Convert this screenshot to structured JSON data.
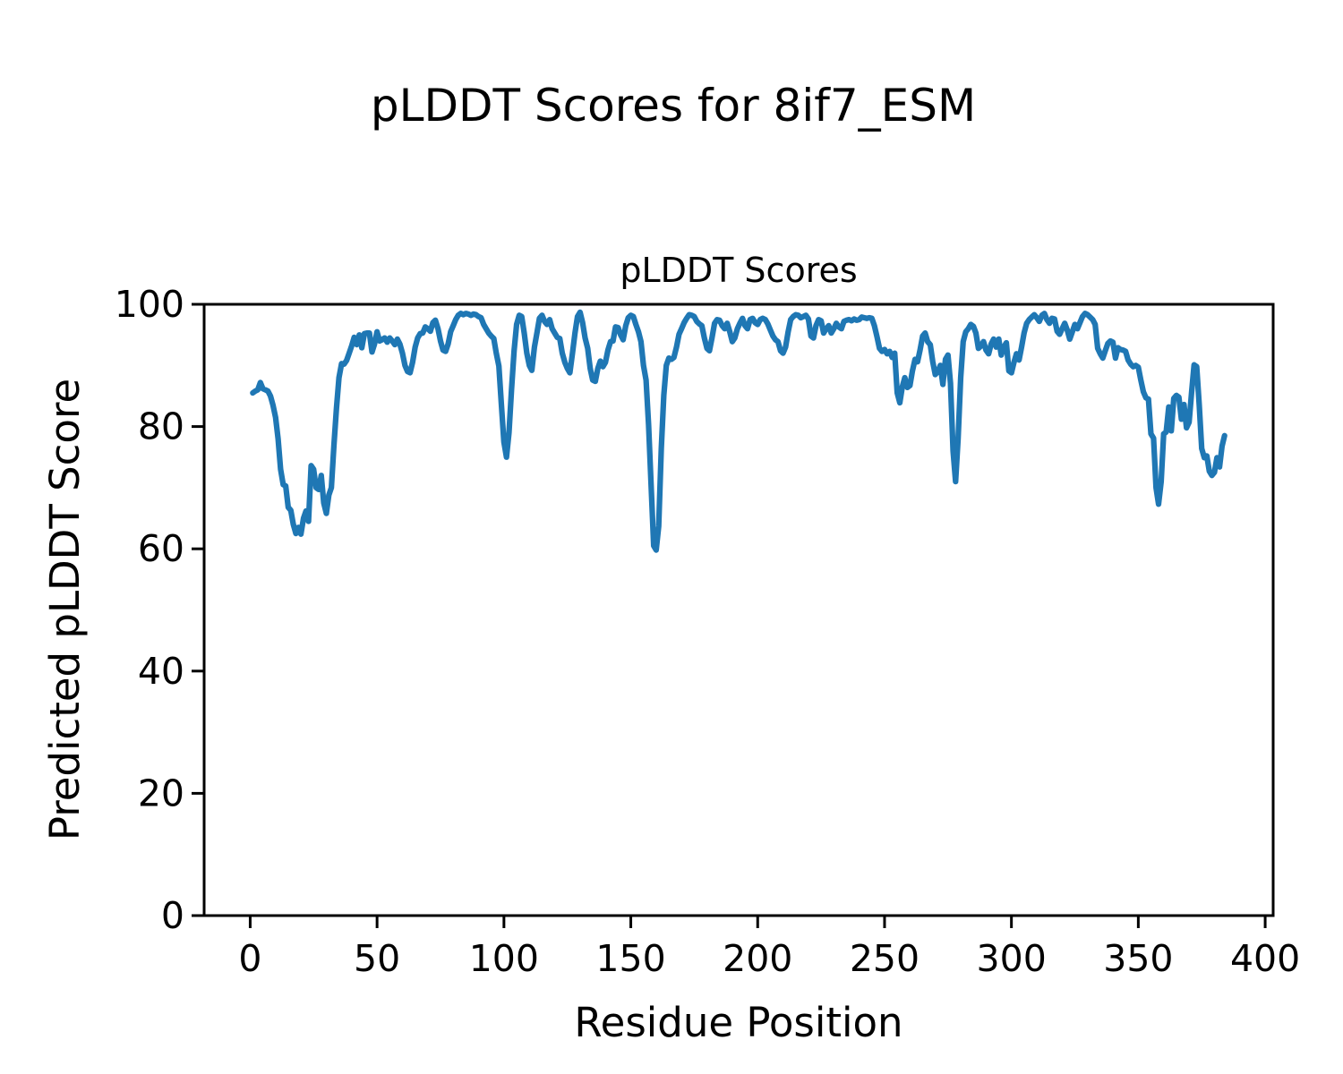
{
  "figure": {
    "suptitle": "pLDDT Scores for 8if7_ESM"
  },
  "chart_data": {
    "type": "line",
    "title": "pLDDT Scores",
    "xlabel": "Residue Position",
    "ylabel": "Predicted pLDDT Score",
    "xlim": [
      -18.15,
      403.15
    ],
    "ylim": [
      0,
      100
    ],
    "xticks": [
      0,
      50,
      100,
      150,
      200,
      250,
      300,
      350,
      400
    ],
    "yticks": [
      0,
      20,
      40,
      60,
      80,
      100
    ],
    "grid": false,
    "legend": null,
    "line_color": "#1f77b4",
    "line_width": 6.25,
    "x": [
      1,
      2,
      3,
      4,
      5,
      6,
      7,
      8,
      9,
      10,
      11,
      12,
      13,
      14,
      15,
      16,
      17,
      18,
      19,
      20,
      21,
      22,
      23,
      24,
      25,
      26,
      27,
      28,
      29,
      30,
      31,
      32,
      33,
      34,
      35,
      36,
      37,
      38,
      39,
      40,
      41,
      42,
      43,
      44,
      45,
      46,
      47,
      48,
      49,
      50,
      51,
      52,
      53,
      54,
      55,
      56,
      57,
      58,
      59,
      60,
      61,
      62,
      63,
      64,
      65,
      66,
      67,
      68,
      69,
      70,
      71,
      72,
      73,
      74,
      75,
      76,
      77,
      78,
      79,
      80,
      81,
      82,
      83,
      84,
      85,
      86,
      87,
      88,
      89,
      90,
      91,
      92,
      93,
      94,
      95,
      96,
      97,
      98,
      99,
      100,
      101,
      102,
      103,
      104,
      105,
      106,
      107,
      108,
      109,
      110,
      111,
      112,
      113,
      114,
      115,
      116,
      117,
      118,
      119,
      120,
      121,
      122,
      123,
      124,
      125,
      126,
      127,
      128,
      129,
      130,
      131,
      132,
      133,
      134,
      135,
      136,
      137,
      138,
      139,
      140,
      141,
      142,
      143,
      144,
      145,
      146,
      147,
      148,
      149,
      150,
      151,
      152,
      153,
      154,
      155,
      156,
      157,
      158,
      159,
      160,
      161,
      162,
      163,
      164,
      165,
      166,
      167,
      168,
      169,
      170,
      171,
      172,
      173,
      174,
      175,
      176,
      177,
      178,
      179,
      180,
      181,
      182,
      183,
      184,
      185,
      186,
      187,
      188,
      189,
      190,
      191,
      192,
      193,
      194,
      195,
      196,
      197,
      198,
      199,
      200,
      201,
      202,
      203,
      204,
      205,
      206,
      207,
      208,
      209,
      210,
      211,
      212,
      213,
      214,
      215,
      216,
      217,
      218,
      219,
      220,
      221,
      222,
      223,
      224,
      225,
      226,
      227,
      228,
      229,
      230,
      231,
      232,
      233,
      234,
      235,
      236,
      237,
      238,
      239,
      240,
      241,
      242,
      243,
      244,
      245,
      246,
      247,
      248,
      249,
      250,
      251,
      252,
      253,
      254,
      255,
      256,
      257,
      258,
      259,
      260,
      261,
      262,
      263,
      264,
      265,
      266,
      267,
      268,
      269,
      270,
      271,
      272,
      273,
      274,
      275,
      276,
      277,
      278,
      279,
      280,
      281,
      282,
      283,
      284,
      285,
      286,
      287,
      288,
      289,
      290,
      291,
      292,
      293,
      294,
      295,
      296,
      297,
      298,
      299,
      300,
      301,
      302,
      303,
      304,
      305,
      306,
      307,
      308,
      309,
      310,
      311,
      312,
      313,
      314,
      315,
      316,
      317,
      318,
      319,
      320,
      321,
      322,
      323,
      324,
      325,
      326,
      327,
      328,
      329,
      330,
      331,
      332,
      333,
      334,
      335,
      336,
      337,
      338,
      339,
      340,
      341,
      342,
      343,
      344,
      345,
      346,
      347,
      348,
      349,
      350,
      351,
      352,
      353,
      354,
      355,
      356,
      357,
      358,
      359,
      360,
      361,
      362,
      363,
      364,
      365,
      366,
      367,
      368,
      369,
      370,
      371,
      372,
      373,
      374,
      375,
      376,
      377,
      378,
      379,
      380,
      381,
      382,
      383,
      384
    ],
    "y": [
      85.5,
      85.8,
      86.0,
      87.2,
      86.2,
      86.0,
      85.8,
      85.0,
      83.5,
      81.5,
      78.0,
      73.0,
      70.5,
      70.3,
      66.8,
      66.3,
      64.0,
      62.5,
      63.5,
      62.4,
      65.0,
      66.2,
      64.5,
      73.6,
      73.0,
      70.0,
      69.7,
      72.0,
      67.5,
      65.8,
      68.8,
      70.0,
      77.0,
      83.0,
      88.0,
      90.3,
      90.2,
      90.8,
      92.0,
      93.2,
      94.6,
      93.4,
      95.0,
      92.9,
      95.2,
      95.3,
      95.3,
      92.2,
      93.5,
      95.5,
      94.0,
      94.2,
      94.5,
      93.8,
      94.5,
      94.0,
      93.4,
      94.3,
      93.5,
      92.0,
      90.0,
      89.0,
      88.8,
      90.5,
      93.0,
      94.5,
      95.2,
      95.3,
      96.3,
      96.0,
      95.6,
      97.0,
      97.4,
      96.0,
      94.0,
      92.5,
      92.3,
      93.5,
      95.5,
      96.5,
      97.5,
      98.2,
      98.5,
      98.3,
      98.5,
      98.4,
      98.2,
      98.4,
      98.3,
      98.0,
      97.8,
      96.7,
      96.0,
      95.3,
      94.8,
      94.4,
      92.0,
      89.9,
      83.6,
      77.5,
      75.0,
      79.0,
      86.0,
      92.4,
      96.7,
      98.2,
      98.0,
      95.3,
      92.0,
      90.0,
      89.2,
      93.0,
      95.3,
      97.7,
      98.2,
      97.2,
      96.7,
      97.5,
      96.0,
      95.3,
      94.6,
      94.4,
      92.0,
      90.5,
      89.5,
      88.8,
      92.0,
      95.3,
      98.0,
      98.7,
      97.0,
      94.5,
      92.8,
      89.5,
      87.6,
      87.4,
      89.5,
      90.7,
      89.8,
      90.5,
      92.5,
      93.9,
      94.0,
      96.3,
      96.2,
      95.0,
      94.2,
      96.5,
      97.8,
      98.2,
      98.0,
      96.7,
      95.5,
      93.9,
      90.0,
      87.6,
      80.3,
      70.5,
      60.5,
      59.8,
      63.7,
      76.4,
      85.1,
      90.0,
      91.2,
      91.0,
      91.3,
      93.0,
      95.1,
      96.0,
      97.0,
      97.7,
      98.3,
      98.2,
      98.0,
      97.2,
      96.8,
      96.5,
      94.5,
      92.8,
      92.4,
      94.5,
      96.9,
      97.5,
      97.4,
      96.5,
      96.0,
      96.9,
      95.5,
      93.9,
      94.5,
      96.0,
      96.9,
      97.7,
      96.5,
      96.0,
      97.5,
      97.7,
      97.0,
      96.7,
      97.5,
      97.7,
      97.5,
      96.8,
      95.8,
      94.8,
      94.2,
      93.9,
      92.4,
      92.0,
      93.0,
      95.5,
      97.5,
      98.0,
      98.3,
      98.2,
      97.8,
      98.0,
      98.2,
      97.6,
      94.8,
      94.5,
      96.5,
      97.5,
      97.3,
      95.3,
      96.0,
      96.5,
      95.3,
      96.0,
      96.9,
      96.3,
      96.0,
      97.2,
      97.4,
      97.5,
      97.3,
      97.6,
      97.4,
      97.5,
      97.9,
      97.8,
      97.7,
      97.8,
      97.7,
      96.5,
      94.7,
      92.8,
      92.3,
      92.6,
      91.9,
      92.3,
      91.3,
      92.0,
      85.5,
      83.9,
      86.5,
      88.0,
      86.4,
      86.7,
      89.1,
      91.0,
      90.6,
      92.5,
      94.8,
      95.3,
      93.9,
      93.4,
      90.6,
      88.5,
      89.0,
      90.0,
      86.9,
      91.0,
      91.7,
      87.1,
      76.0,
      71.0,
      78.0,
      88.0,
      93.9,
      95.5,
      96.0,
      96.7,
      96.4,
      95.3,
      92.8,
      93.2,
      93.9,
      92.5,
      91.9,
      93.5,
      94.3,
      93.0,
      94.3,
      91.7,
      93.0,
      93.7,
      89.1,
      88.8,
      90.5,
      91.9,
      90.9,
      93.0,
      95.3,
      96.9,
      97.5,
      97.9,
      98.3,
      97.8,
      97.2,
      98.2,
      98.5,
      97.5,
      96.9,
      97.7,
      97.6,
      95.6,
      95.1,
      96.0,
      96.9,
      95.8,
      94.3,
      95.5,
      96.7,
      96.0,
      97.0,
      98.0,
      98.5,
      98.3,
      97.9,
      97.5,
      96.7,
      92.8,
      91.9,
      91.2,
      92.4,
      93.6,
      94.0,
      93.8,
      91.2,
      92.9,
      92.6,
      92.5,
      92.3,
      90.9,
      90.2,
      89.8,
      90.0,
      89.7,
      87.6,
      85.7,
      84.7,
      84.5,
      78.8,
      78.1,
      70.0,
      67.3,
      71.0,
      78.8,
      79.1,
      83.2,
      79.3,
      84.6,
      85.1,
      84.8,
      81.2,
      83.6,
      79.8,
      80.7,
      85.6,
      90.1,
      89.8,
      83.6,
      76.4,
      74.9,
      75.2,
      72.7,
      72.0,
      72.5,
      74.9,
      73.4,
      76.8,
      78.5
    ]
  }
}
